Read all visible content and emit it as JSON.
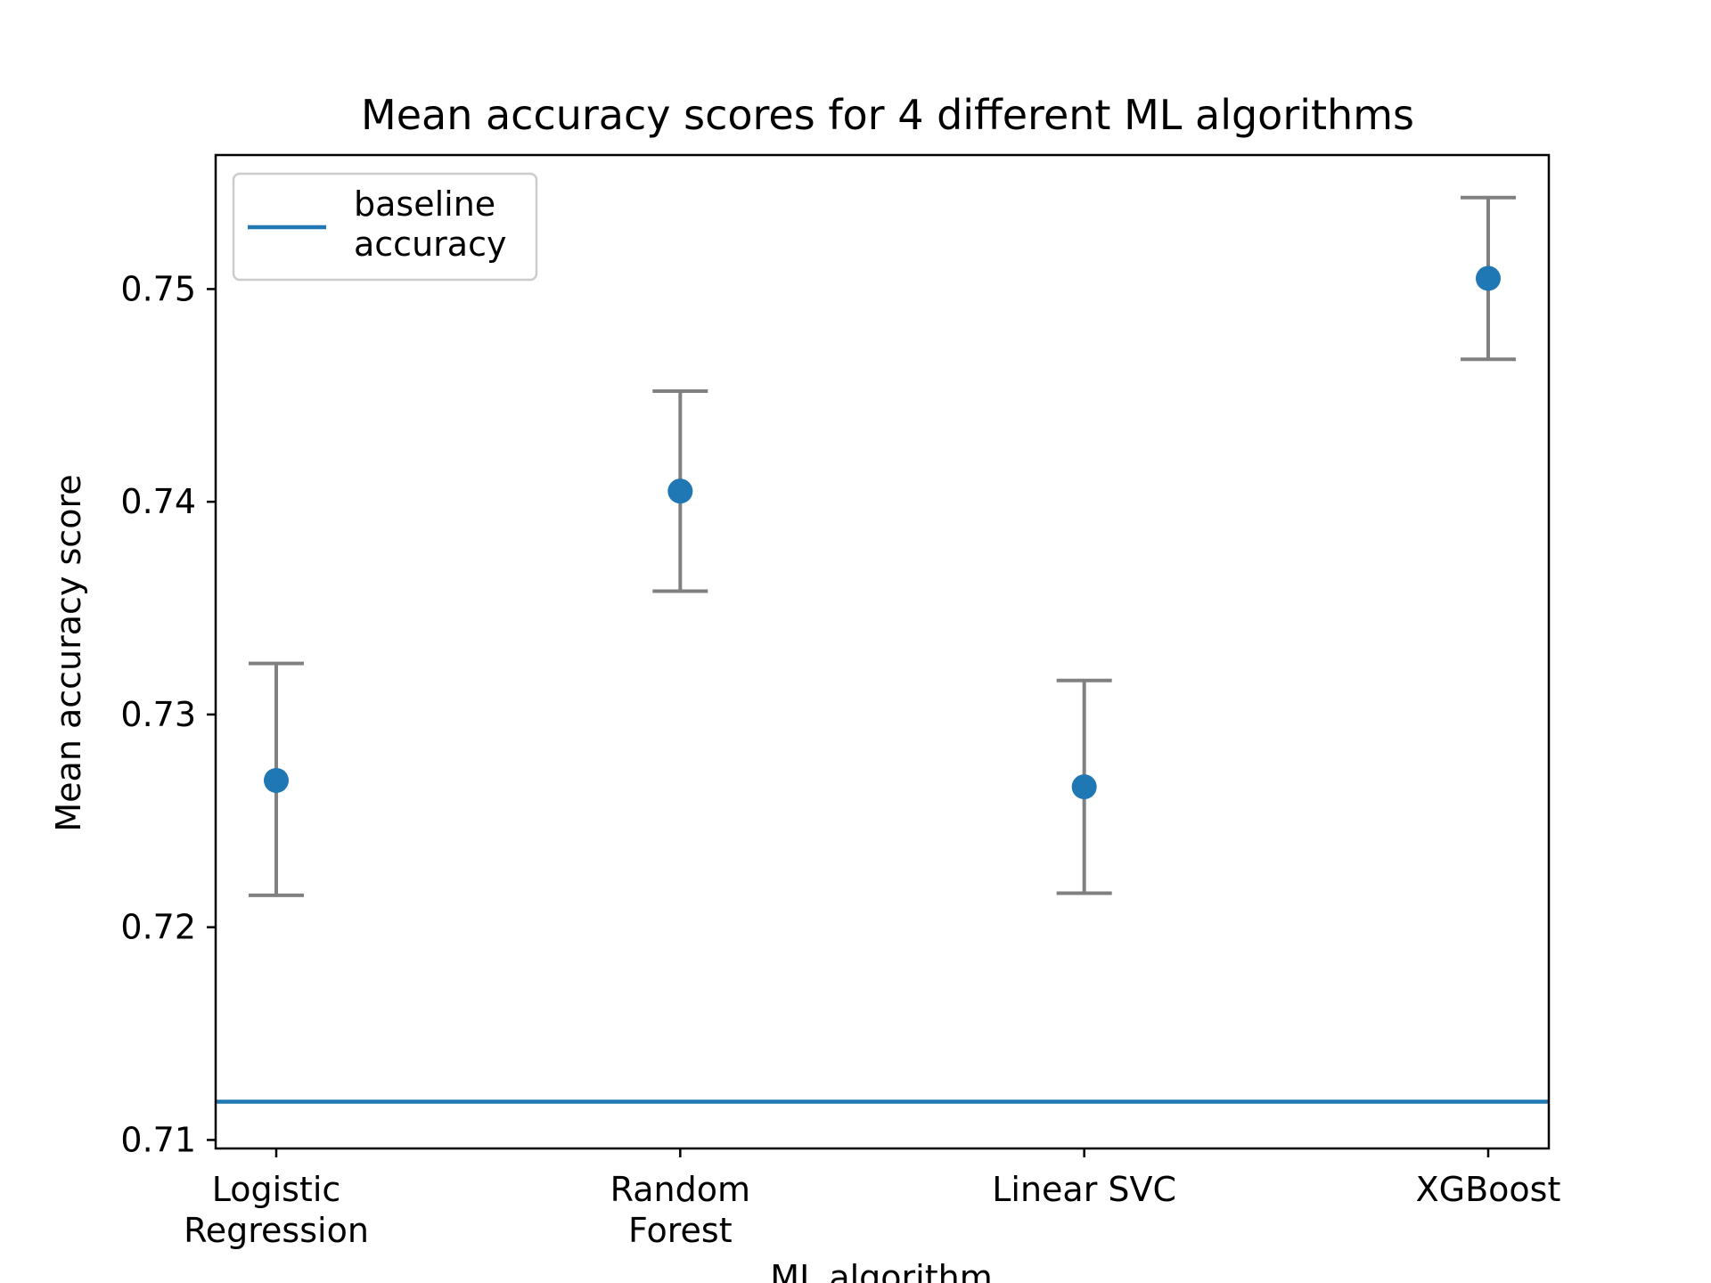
{
  "chart_data": {
    "type": "scatter",
    "title": "Mean accuracy scores for 4 different ML algorithms",
    "xlabel": "ML algorithm",
    "ylabel": "Mean accuracy score",
    "categories": [
      [
        "Logistic",
        "Regression"
      ],
      [
        "Random",
        "Forest"
      ],
      [
        "Linear SVC"
      ],
      [
        "XGBoost"
      ]
    ],
    "series": [
      {
        "values": [
          0.7269,
          0.7405,
          0.7266,
          0.7505
        ],
        "error_low": [
          0.7215,
          0.7358,
          0.7216,
          0.7467
        ],
        "error_high": [
          0.7324,
          0.7452,
          0.7316,
          0.7543
        ]
      }
    ],
    "baseline": {
      "value": 0.7118,
      "label": [
        "baseline",
        "accuracy"
      ]
    },
    "yticks": [
      "0.71",
      "0.72",
      "0.73",
      "0.74",
      "0.75"
    ],
    "ylim": [
      0.7096,
      0.7563
    ],
    "grid": false,
    "legend_position": "upper left",
    "colors": {
      "points": "#1f77b4",
      "baseline": "#1f77b4",
      "errorbars": "#808080",
      "axes": "#000000"
    }
  }
}
